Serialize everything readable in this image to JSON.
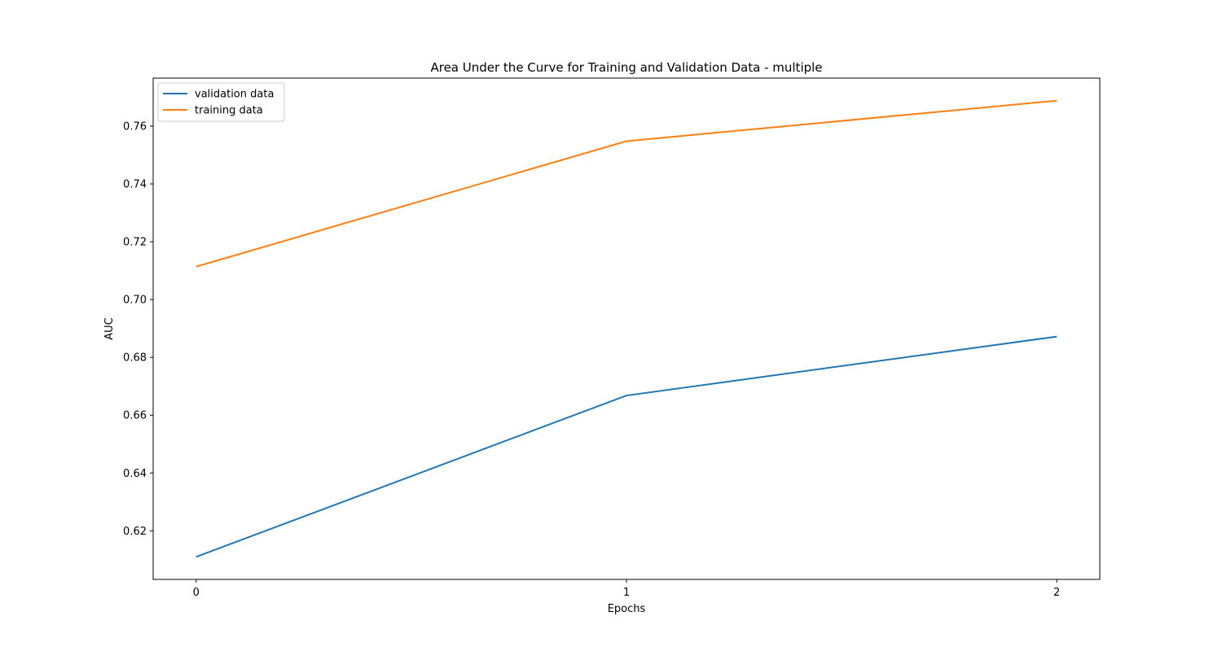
{
  "chart_data": {
    "type": "line",
    "title": "Area Under the Curve for Training and Validation Data - multiple",
    "xlabel": "Epochs",
    "ylabel": "AUC",
    "x": [
      0,
      1,
      2
    ],
    "xticks": [
      "0",
      "1",
      "2"
    ],
    "yticks": [
      "0.62",
      "0.64",
      "0.66",
      "0.68",
      "0.70",
      "0.72",
      "0.74",
      "0.76"
    ],
    "xlim": [
      -0.1,
      2.1
    ],
    "ylim": [
      0.6032,
      0.7766
    ],
    "grid": false,
    "legend_position": "upper left",
    "series": [
      {
        "name": "validation data",
        "color": "#1f77b4",
        "values": [
          0.611,
          0.6668,
          0.6872
        ]
      },
      {
        "name": "training data",
        "color": "#ff7f0e",
        "values": [
          0.7114,
          0.7548,
          0.7688
        ]
      }
    ]
  }
}
